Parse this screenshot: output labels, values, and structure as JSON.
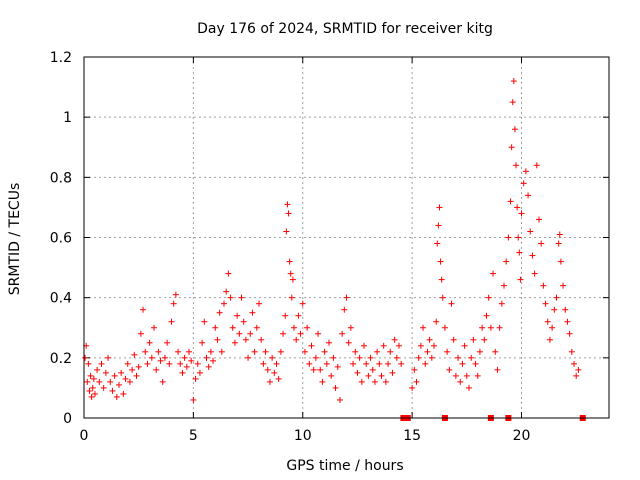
{
  "chart_data": {
    "type": "scatter",
    "title": "Day 176 of 2024, SRMTID for receiver kitg",
    "xlabel": "GPS time / hours",
    "ylabel": "SRMTID / TECUs",
    "xlim": [
      0,
      24
    ],
    "ylim": [
      0,
      1.2
    ],
    "grid": true,
    "marker": "+",
    "color": "#ff0000",
    "x_ticks": [
      0,
      5,
      10,
      15,
      20
    ],
    "x_tick_labels": [
      "0",
      "5",
      "10",
      "15",
      "20"
    ],
    "y_ticks": [
      0,
      0.2,
      0.4,
      0.6,
      0.8,
      1.0,
      1.2
    ],
    "y_tick_labels": [
      "0",
      "0.2",
      "0.4",
      "0.6",
      "0.8",
      "1",
      "1.2"
    ],
    "series": [
      {
        "name": "SRMTID",
        "points": [
          [
            0.05,
            0.2
          ],
          [
            0.1,
            0.24
          ],
          [
            0.15,
            0.12
          ],
          [
            0.2,
            0.18
          ],
          [
            0.25,
            0.09
          ],
          [
            0.3,
            0.14
          ],
          [
            0.35,
            0.07
          ],
          [
            0.4,
            0.1
          ],
          [
            0.45,
            0.13
          ],
          [
            0.5,
            0.08
          ],
          [
            0.6,
            0.16
          ],
          [
            0.7,
            0.12
          ],
          [
            0.8,
            0.18
          ],
          [
            0.9,
            0.1
          ],
          [
            1.0,
            0.15
          ],
          [
            1.1,
            0.2
          ],
          [
            1.2,
            0.12
          ],
          [
            1.3,
            0.09
          ],
          [
            1.4,
            0.14
          ],
          [
            1.5,
            0.07
          ],
          [
            1.6,
            0.11
          ],
          [
            1.7,
            0.15
          ],
          [
            1.8,
            0.08
          ],
          [
            1.9,
            0.13
          ],
          [
            2.0,
            0.18
          ],
          [
            2.1,
            0.12
          ],
          [
            2.2,
            0.16
          ],
          [
            2.3,
            0.21
          ],
          [
            2.4,
            0.14
          ],
          [
            2.5,
            0.17
          ],
          [
            2.6,
            0.28
          ],
          [
            2.7,
            0.36
          ],
          [
            2.8,
            0.22
          ],
          [
            2.9,
            0.18
          ],
          [
            3.0,
            0.25
          ],
          [
            3.1,
            0.2
          ],
          [
            3.2,
            0.3
          ],
          [
            3.3,
            0.16
          ],
          [
            3.4,
            0.22
          ],
          [
            3.5,
            0.19
          ],
          [
            3.6,
            0.12
          ],
          [
            3.7,
            0.2
          ],
          [
            3.8,
            0.25
          ],
          [
            3.9,
            0.18
          ],
          [
            4.0,
            0.32
          ],
          [
            4.1,
            0.38
          ],
          [
            4.2,
            0.41
          ],
          [
            4.3,
            0.22
          ],
          [
            4.4,
            0.18
          ],
          [
            4.5,
            0.15
          ],
          [
            4.6,
            0.2
          ],
          [
            4.7,
            0.17
          ],
          [
            4.8,
            0.22
          ],
          [
            4.9,
            0.19
          ],
          [
            5.0,
            0.06
          ],
          [
            5.1,
            0.13
          ],
          [
            5.2,
            0.18
          ],
          [
            5.3,
            0.15
          ],
          [
            5.4,
            0.25
          ],
          [
            5.5,
            0.32
          ],
          [
            5.6,
            0.2
          ],
          [
            5.7,
            0.17
          ],
          [
            5.8,
            0.22
          ],
          [
            5.9,
            0.19
          ],
          [
            6.0,
            0.3
          ],
          [
            6.1,
            0.26
          ],
          [
            6.2,
            0.35
          ],
          [
            6.3,
            0.22
          ],
          [
            6.4,
            0.38
          ],
          [
            6.5,
            0.42
          ],
          [
            6.6,
            0.48
          ],
          [
            6.7,
            0.4
          ],
          [
            6.8,
            0.3
          ],
          [
            6.9,
            0.25
          ],
          [
            7.0,
            0.34
          ],
          [
            7.1,
            0.28
          ],
          [
            7.2,
            0.4
          ],
          [
            7.3,
            0.32
          ],
          [
            7.4,
            0.26
          ],
          [
            7.5,
            0.2
          ],
          [
            7.6,
            0.28
          ],
          [
            7.7,
            0.35
          ],
          [
            7.8,
            0.22
          ],
          [
            7.9,
            0.3
          ],
          [
            8.0,
            0.38
          ],
          [
            8.1,
            0.26
          ],
          [
            8.2,
            0.18
          ],
          [
            8.3,
            0.22
          ],
          [
            8.4,
            0.16
          ],
          [
            8.5,
            0.12
          ],
          [
            8.6,
            0.2
          ],
          [
            8.7,
            0.15
          ],
          [
            8.8,
            0.18
          ],
          [
            8.9,
            0.13
          ],
          [
            9.0,
            0.22
          ],
          [
            9.1,
            0.28
          ],
          [
            9.2,
            0.34
          ],
          [
            9.25,
            0.62
          ],
          [
            9.3,
            0.71
          ],
          [
            9.35,
            0.68
          ],
          [
            9.4,
            0.52
          ],
          [
            9.45,
            0.48
          ],
          [
            9.5,
            0.4
          ],
          [
            9.55,
            0.46
          ],
          [
            9.6,
            0.3
          ],
          [
            9.7,
            0.26
          ],
          [
            9.8,
            0.34
          ],
          [
            9.9,
            0.28
          ],
          [
            10.0,
            0.38
          ],
          [
            10.1,
            0.22
          ],
          [
            10.2,
            0.3
          ],
          [
            10.3,
            0.18
          ],
          [
            10.4,
            0.24
          ],
          [
            10.5,
            0.16
          ],
          [
            10.6,
            0.2
          ],
          [
            10.7,
            0.28
          ],
          [
            10.8,
            0.16
          ],
          [
            10.9,
            0.12
          ],
          [
            11.0,
            0.22
          ],
          [
            11.1,
            0.18
          ],
          [
            11.2,
            0.25
          ],
          [
            11.3,
            0.14
          ],
          [
            11.4,
            0.2
          ],
          [
            11.5,
            0.1
          ],
          [
            11.6,
            0.17
          ],
          [
            11.7,
            0.06
          ],
          [
            11.8,
            0.28
          ],
          [
            11.9,
            0.36
          ],
          [
            12.0,
            0.4
          ],
          [
            12.1,
            0.25
          ],
          [
            12.2,
            0.3
          ],
          [
            12.3,
            0.18
          ],
          [
            12.4,
            0.22
          ],
          [
            12.5,
            0.15
          ],
          [
            12.6,
            0.2
          ],
          [
            12.7,
            0.12
          ],
          [
            12.8,
            0.24
          ],
          [
            12.9,
            0.18
          ],
          [
            13.0,
            0.14
          ],
          [
            13.1,
            0.2
          ],
          [
            13.2,
            0.16
          ],
          [
            13.3,
            0.12
          ],
          [
            13.4,
            0.22
          ],
          [
            13.5,
            0.18
          ],
          [
            13.6,
            0.14
          ],
          [
            13.7,
            0.24
          ],
          [
            13.8,
            0.12
          ],
          [
            13.9,
            0.18
          ],
          [
            14.0,
            0.22
          ],
          [
            14.1,
            0.15
          ],
          [
            14.2,
            0.26
          ],
          [
            14.3,
            0.2
          ],
          [
            14.4,
            0.24
          ],
          [
            14.5,
            0.18
          ],
          [
            15.0,
            0.1
          ],
          [
            15.1,
            0.16
          ],
          [
            15.2,
            0.12
          ],
          [
            15.3,
            0.2
          ],
          [
            15.4,
            0.24
          ],
          [
            15.5,
            0.3
          ],
          [
            15.6,
            0.18
          ],
          [
            15.7,
            0.22
          ],
          [
            15.8,
            0.26
          ],
          [
            15.9,
            0.2
          ],
          [
            16.0,
            0.24
          ],
          [
            16.1,
            0.32
          ],
          [
            16.15,
            0.58
          ],
          [
            16.2,
            0.64
          ],
          [
            16.25,
            0.7
          ],
          [
            16.3,
            0.52
          ],
          [
            16.35,
            0.46
          ],
          [
            16.4,
            0.4
          ],
          [
            16.5,
            0.3
          ],
          [
            16.6,
            0.22
          ],
          [
            16.7,
            0.16
          ],
          [
            16.8,
            0.38
          ],
          [
            16.9,
            0.26
          ],
          [
            17.0,
            0.14
          ],
          [
            17.1,
            0.2
          ],
          [
            17.2,
            0.12
          ],
          [
            17.3,
            0.18
          ],
          [
            17.4,
            0.24
          ],
          [
            17.5,
            0.14
          ],
          [
            17.6,
            0.1
          ],
          [
            17.7,
            0.2
          ],
          [
            17.8,
            0.26
          ],
          [
            17.9,
            0.18
          ],
          [
            18.0,
            0.14
          ],
          [
            18.1,
            0.22
          ],
          [
            18.2,
            0.3
          ],
          [
            18.3,
            0.26
          ],
          [
            18.4,
            0.34
          ],
          [
            18.5,
            0.4
          ],
          [
            18.6,
            0.3
          ],
          [
            18.7,
            0.48
          ],
          [
            18.8,
            0.22
          ],
          [
            18.9,
            0.16
          ],
          [
            19.0,
            0.3
          ],
          [
            19.1,
            0.38
          ],
          [
            19.2,
            0.44
          ],
          [
            19.3,
            0.52
          ],
          [
            19.4,
            0.6
          ],
          [
            19.5,
            0.72
          ],
          [
            19.55,
            0.9
          ],
          [
            19.6,
            1.05
          ],
          [
            19.65,
            1.12
          ],
          [
            19.7,
            0.96
          ],
          [
            19.75,
            0.84
          ],
          [
            19.8,
            0.7
          ],
          [
            19.85,
            0.6
          ],
          [
            19.9,
            0.55
          ],
          [
            19.95,
            0.46
          ],
          [
            20.0,
            0.68
          ],
          [
            20.1,
            0.78
          ],
          [
            20.2,
            0.82
          ],
          [
            20.3,
            0.74
          ],
          [
            20.4,
            0.62
          ],
          [
            20.5,
            0.54
          ],
          [
            20.6,
            0.48
          ],
          [
            20.7,
            0.84
          ],
          [
            20.8,
            0.66
          ],
          [
            20.9,
            0.58
          ],
          [
            21.0,
            0.44
          ],
          [
            21.1,
            0.38
          ],
          [
            21.2,
            0.32
          ],
          [
            21.3,
            0.26
          ],
          [
            21.4,
            0.3
          ],
          [
            21.5,
            0.36
          ],
          [
            21.6,
            0.4
          ],
          [
            21.7,
            0.58
          ],
          [
            21.75,
            0.61
          ],
          [
            21.8,
            0.52
          ],
          [
            21.9,
            0.44
          ],
          [
            22.0,
            0.36
          ],
          [
            22.1,
            0.32
          ],
          [
            22.2,
            0.28
          ],
          [
            22.3,
            0.22
          ],
          [
            22.4,
            0.18
          ],
          [
            22.5,
            0.14
          ],
          [
            22.6,
            0.16
          ]
        ]
      },
      {
        "name": "zero-markers",
        "points": [
          [
            14.6,
            0
          ],
          [
            14.8,
            0
          ],
          [
            16.5,
            0
          ],
          [
            18.6,
            0
          ],
          [
            19.4,
            0
          ],
          [
            22.8,
            0
          ]
        ]
      }
    ]
  }
}
